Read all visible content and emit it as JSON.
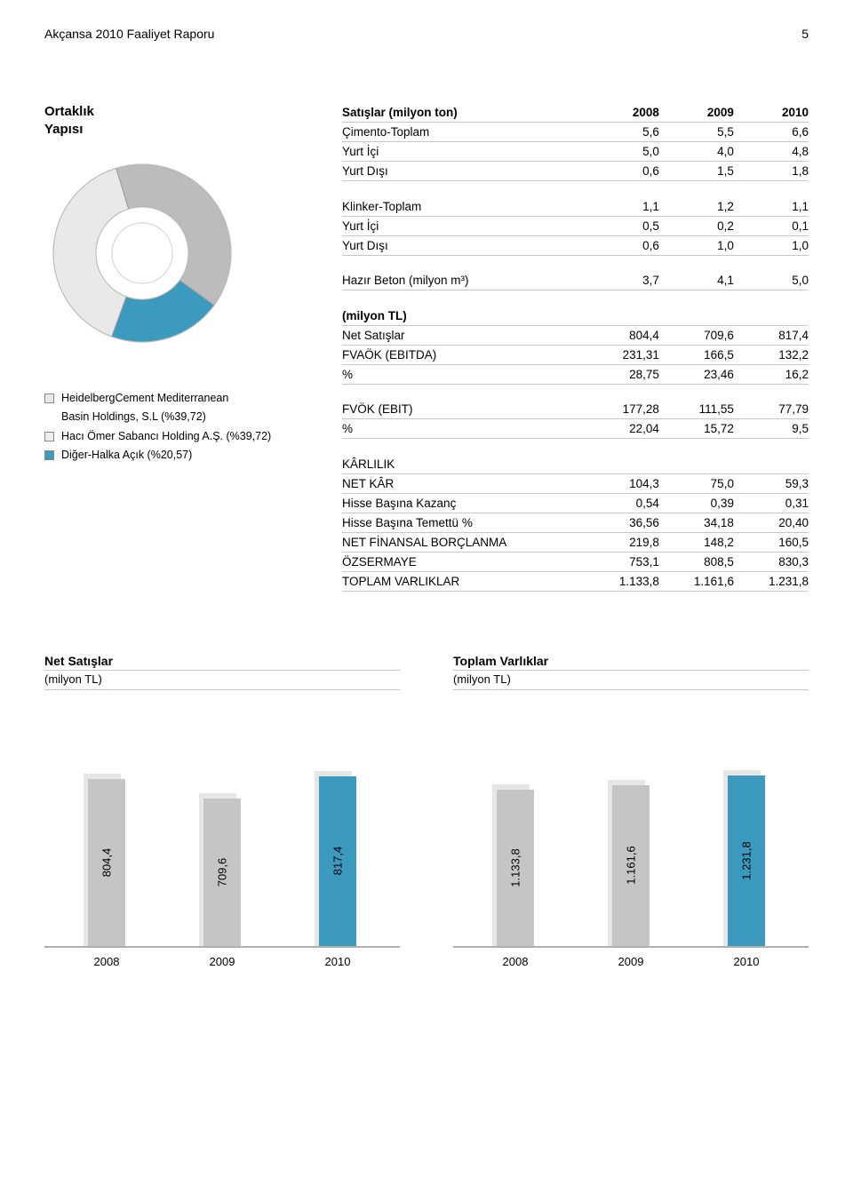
{
  "header": {
    "title": "Akçansa 2010 Faaliyet Raporu",
    "page_number": "5"
  },
  "ortaklik": {
    "title_line1": "Ortaklık",
    "title_line2": "Yapısı"
  },
  "donut": {
    "type": "donut",
    "slices": [
      {
        "label": "HeidelbergCement Mediterranean Basin Holdings, S.L (%39,72)",
        "value": 39.72,
        "color": "#e9e9e9"
      },
      {
        "label": "Hacı Ömer Sabancı Holding A.Ş. (%39,72)",
        "value": 39.72,
        "color": "#bcbcbc"
      },
      {
        "label": "Diğer-Halka Açık (%20,57)",
        "value": 20.57,
        "color": "#3d9abf"
      }
    ],
    "inner_radius": 52,
    "outer_radius": 100,
    "center_fill": "#ffffff",
    "stroke": "#9a9a9a",
    "background": "#ffffff",
    "legend_items": [
      {
        "color": "#e9e9e9",
        "label": "HeidelbergCement Mediterranean"
      },
      {
        "color": "#e9e9e9",
        "label2": "Basin Holdings, S.L (%39,72)"
      },
      {
        "color": "#eeeeee",
        "label": "Hacı Ömer Sabancı Holding A.Ş. (%39,72)"
      },
      {
        "color": "#3d9abf",
        "label": "Diğer-Halka Açık (%20,57)"
      }
    ]
  },
  "tables": {
    "years": [
      "2008",
      "2009",
      "2010"
    ],
    "satislar_title": "Satışlar (milyon ton)",
    "cimento": {
      "rows": [
        {
          "k": "Çimento-Toplam",
          "v": [
            "5,6",
            "5,5",
            "6,6"
          ]
        },
        {
          "k": "Yurt İçi",
          "v": [
            "5,0",
            "4,0",
            "4,8"
          ]
        },
        {
          "k": "Yurt Dışı",
          "v": [
            "0,6",
            "1,5",
            "1,8"
          ]
        }
      ]
    },
    "klinker": {
      "rows": [
        {
          "k": "Klinker-Toplam",
          "v": [
            "1,1",
            "1,2",
            "1,1"
          ]
        },
        {
          "k": "Yurt İçi",
          "v": [
            "0,5",
            "0,2",
            "0,1"
          ]
        },
        {
          "k": "Yurt Dışı",
          "v": [
            "0,6",
            "1,0",
            "1,0"
          ]
        }
      ]
    },
    "hazir_beton": {
      "k": "Hazır Beton (milyon m³)",
      "v": [
        "3,7",
        "4,1",
        "5,0"
      ]
    },
    "milyon_tl_title": "(milyon TL)",
    "milyon_tl": {
      "rows": [
        {
          "k": "Net Satışlar",
          "v": [
            "804,4",
            "709,6",
            "817,4"
          ]
        },
        {
          "k": "FVAÖK (EBITDA)",
          "v": [
            "231,31",
            "166,5",
            "132,2"
          ]
        },
        {
          "k": "%",
          "v": [
            "28,75",
            "23,46",
            "16,2"
          ]
        }
      ],
      "rows2": [
        {
          "k": "FVÖK (EBIT)",
          "v": [
            "177,28",
            "111,55",
            "77,79"
          ]
        },
        {
          "k": "%",
          "v": [
            "22,04",
            "15,72",
            "9,5"
          ]
        }
      ]
    },
    "karlilik_title": "KÂRLILIK",
    "karlilik": {
      "rows": [
        {
          "k": "NET KÂR",
          "v": [
            "104,3",
            "75,0",
            "59,3"
          ]
        },
        {
          "k": "Hisse Başına Kazanç",
          "v": [
            "0,54",
            "0,39",
            "0,31"
          ]
        },
        {
          "k": "Hisse Başına Temettü %",
          "v": [
            "36,56",
            "34,18",
            "20,40"
          ]
        },
        {
          "k": "NET FİNANSAL BORÇLANMA",
          "v": [
            "219,8",
            "148,2",
            "160,5"
          ]
        },
        {
          "k": "ÖZSERMAYE",
          "v": [
            "753,1",
            "808,5",
            "830,3"
          ]
        },
        {
          "k": "TOPLAM VARLIKLAR",
          "v": [
            "1.133,8",
            "1.161,6",
            "1.231,8"
          ]
        }
      ]
    }
  },
  "bar_charts": {
    "shadow_color": "#e6e6e6",
    "gray_bar": "#c5c5c5",
    "blue_bar": "#3d9abf",
    "x_labels": [
      "2008",
      "2009",
      "2010"
    ],
    "net_satislar": {
      "title": "Net Satışlar",
      "subtitle": "(milyon TL)",
      "values": [
        804.4,
        709.6,
        817.4
      ],
      "labels": [
        "804,4",
        "709,6",
        "817,4"
      ],
      "max": 900,
      "highlight_index": 2
    },
    "toplam_varliklar": {
      "title": "Toplam Varlıklar",
      "subtitle": "(milyon TL)",
      "values": [
        1133.8,
        1161.6,
        1231.8
      ],
      "labels": [
        "1.133,8",
        "1.161,6",
        "1.231,8"
      ],
      "max": 1350,
      "highlight_index": 2
    }
  }
}
